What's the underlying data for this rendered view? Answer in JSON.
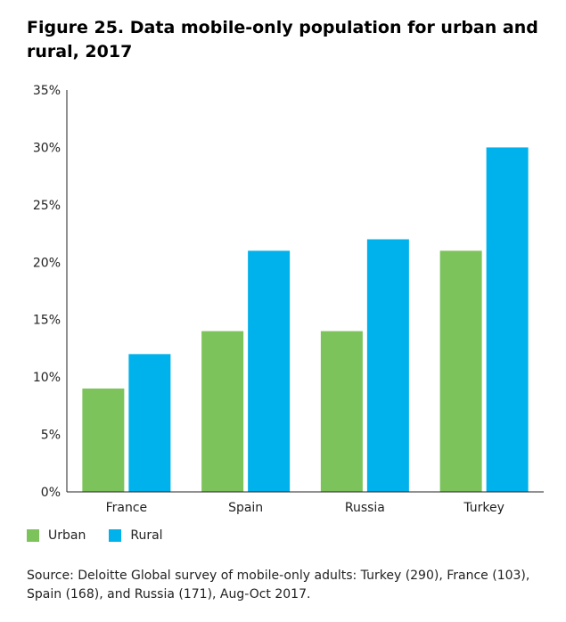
{
  "colors": {
    "urban": "#7dc35b",
    "rural": "#00b2eb",
    "axis": "#222222"
  },
  "chart_data": {
    "type": "bar",
    "title": "Figure 25. Data mobile-only population for urban and rural, 2017",
    "categories": [
      "France",
      "Spain",
      "Russia",
      "Turkey"
    ],
    "series": [
      {
        "name": "Urban",
        "values": [
          9,
          14,
          14,
          21
        ]
      },
      {
        "name": "Rural",
        "values": [
          12,
          21,
          22,
          30
        ]
      }
    ],
    "ylim": [
      0,
      35
    ],
    "yticks": [
      0,
      5,
      10,
      15,
      20,
      25,
      30,
      35
    ],
    "ytick_labels": [
      "0%",
      "5%",
      "10%",
      "15%",
      "20%",
      "25%",
      "30%",
      "35%"
    ],
    "xlabel": "",
    "ylabel": "",
    "grid": false,
    "legend": {
      "position": "bottom-left",
      "entries": [
        "Urban",
        "Rural"
      ]
    },
    "source": "Source: Deloitte Global survey of mobile-only adults: Turkey (290), France (103), Spain (168), and Russia (171), Aug-Oct 2017."
  }
}
